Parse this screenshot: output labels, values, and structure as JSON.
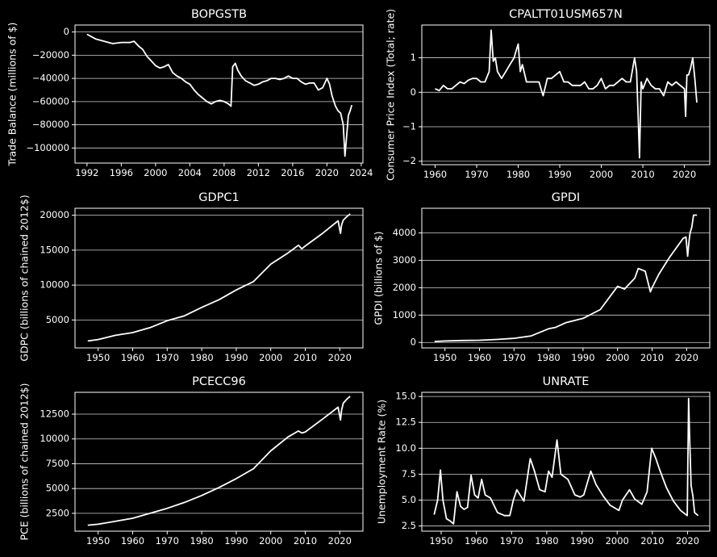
{
  "theme": {
    "background": "#000000",
    "foreground": "#ffffff",
    "grid": "#d0d0d0",
    "line": "#ffffff"
  },
  "chart_data": [
    {
      "type": "line",
      "title": "BOPGSTB",
      "xlabel": "",
      "ylabel": "Trade Balance (millions of $)",
      "x_is_date": true,
      "xlim": [
        1990.6,
        2024.2
      ],
      "ylim": [
        -113000,
        6000
      ],
      "xticks": [
        1992,
        1996,
        2000,
        2004,
        2008,
        2012,
        2016,
        2020,
        2024
      ],
      "yticks": [
        0,
        -20000,
        -40000,
        -60000,
        -80000,
        -100000
      ],
      "ytick_labels": [
        "0",
        "−20000",
        "−40000",
        "−60000",
        "−80000",
        "−100000"
      ],
      "grid": "y",
      "series": [
        {
          "x": [
            1992.0,
            1993.0,
            1994.0,
            1995.0,
            1996.0,
            1997.0,
            1997.5,
            1998.0,
            1998.5,
            1999.0,
            1999.5,
            2000.0,
            2000.5,
            2001.0,
            2001.5,
            2002.0,
            2002.5,
            2003.0,
            2003.5,
            2004.0,
            2004.5,
            2005.0,
            2005.5,
            2006.0,
            2006.5,
            2007.0,
            2007.5,
            2008.0,
            2008.5,
            2008.8,
            2009.0,
            2009.3,
            2009.6,
            2010.0,
            2010.5,
            2011.0,
            2011.5,
            2012.0,
            2012.5,
            2013.0,
            2013.5,
            2014.0,
            2014.5,
            2015.0,
            2015.5,
            2016.0,
            2016.5,
            2017.0,
            2017.5,
            2018.0,
            2018.5,
            2019.0,
            2019.5,
            2020.0,
            2020.3,
            2020.6,
            2021.0,
            2021.3,
            2021.6,
            2021.9,
            2022.1,
            2022.3,
            2022.5,
            2022.7,
            2022.9
          ],
          "y": [
            -2000,
            -6000,
            -8000,
            -10000,
            -9000,
            -9000,
            -8000,
            -12000,
            -15000,
            -21000,
            -25000,
            -29000,
            -31000,
            -30000,
            -28000,
            -35000,
            -38000,
            -40000,
            -43000,
            -45000,
            -50000,
            -54000,
            -57000,
            -60000,
            -62000,
            -60000,
            -59000,
            -60000,
            -62000,
            -64000,
            -30000,
            -27000,
            -33000,
            -38000,
            -42000,
            -44000,
            -46000,
            -45000,
            -43000,
            -42000,
            -40000,
            -40000,
            -41000,
            -40000,
            -38000,
            -40000,
            -40000,
            -43000,
            -45000,
            -44000,
            -44000,
            -50000,
            -48000,
            -40000,
            -45000,
            -55000,
            -64000,
            -68000,
            -70000,
            -80000,
            -107000,
            -90000,
            -72000,
            -68000,
            -63000
          ]
        }
      ]
    },
    {
      "type": "line",
      "title": "CPALTT01USM657N",
      "xlabel": "",
      "ylabel": "Consumer Price Index (Total; rate)",
      "x_is_date": true,
      "xlim": [
        1956.8,
        2026.1
      ],
      "ylim": [
        -2.1,
        1.95
      ],
      "xticks": [
        1960,
        1970,
        1980,
        1990,
        2000,
        2010,
        2020
      ],
      "yticks": [
        1,
        0,
        -1,
        -2
      ],
      "ytick_labels": [
        "1",
        "0",
        "−1",
        "−2"
      ],
      "grid": "y",
      "series": [
        {
          "x": [
            1960.0,
            1961.0,
            1962.0,
            1963.0,
            1964.0,
            1965.0,
            1966.0,
            1967.0,
            1968.0,
            1969.0,
            1970.0,
            1971.0,
            1972.0,
            1973.0,
            1973.5,
            1974.0,
            1974.5,
            1975.0,
            1976.0,
            1977.0,
            1978.0,
            1979.0,
            1979.5,
            1980.0,
            1980.5,
            1981.0,
            1982.0,
            1983.0,
            1984.0,
            1985.0,
            1986.0,
            1987.0,
            1988.0,
            1989.0,
            1990.0,
            1991.0,
            1992.0,
            1993.0,
            1994.0,
            1995.0,
            1996.0,
            1997.0,
            1998.0,
            1999.0,
            2000.0,
            2001.0,
            2002.0,
            2003.0,
            2004.0,
            2005.0,
            2006.0,
            2007.0,
            2008.0,
            2008.5,
            2008.9,
            2009.2,
            2009.6,
            2010.0,
            2011.0,
            2012.0,
            2013.0,
            2014.0,
            2015.0,
            2016.0,
            2017.0,
            2018.0,
            2019.0,
            2020.0,
            2020.3,
            2020.6,
            2021.0,
            2021.5,
            2022.0,
            2022.5,
            2023.0
          ],
          "y": [
            0.1,
            0.05,
            0.2,
            0.1,
            0.1,
            0.2,
            0.3,
            0.25,
            0.35,
            0.4,
            0.4,
            0.3,
            0.3,
            0.6,
            1.8,
            0.9,
            1.0,
            0.6,
            0.4,
            0.6,
            0.8,
            1.0,
            1.2,
            1.4,
            0.6,
            0.8,
            0.3,
            0.3,
            0.3,
            0.3,
            -0.1,
            0.4,
            0.4,
            0.5,
            0.6,
            0.3,
            0.3,
            0.2,
            0.2,
            0.2,
            0.3,
            0.1,
            0.1,
            0.2,
            0.4,
            0.1,
            0.2,
            0.2,
            0.3,
            0.4,
            0.3,
            0.3,
            1.0,
            0.6,
            -0.8,
            -1.9,
            0.3,
            0.1,
            0.4,
            0.2,
            0.1,
            0.1,
            -0.1,
            0.3,
            0.2,
            0.3,
            0.2,
            0.1,
            -0.7,
            0.5,
            0.5,
            0.7,
            1.0,
            0.4,
            -0.3
          ]
        }
      ]
    },
    {
      "type": "line",
      "title": "GDPC1",
      "xlabel": "",
      "ylabel": "GDPC (billions of chained 2012$)",
      "x_is_date": true,
      "xlim": [
        1943.3,
        2026.7
      ],
      "ylim": [
        1000,
        21000
      ],
      "xticks": [
        1950,
        1960,
        1970,
        1980,
        1990,
        2000,
        2010,
        2020
      ],
      "yticks": [
        5000,
        10000,
        15000,
        20000
      ],
      "ytick_labels": [
        "5000",
        "10000",
        "15000",
        "20000"
      ],
      "grid": "y",
      "series": [
        {
          "x": [
            1947,
            1950,
            1955,
            1960,
            1965,
            1970,
            1975,
            1980,
            1985,
            1990,
            1995,
            2000,
            2005,
            2008,
            2009,
            2010,
            2015,
            2019.5,
            2020.2,
            2020.5,
            2021,
            2022,
            2023
          ],
          "y": [
            2000,
            2200,
            2800,
            3200,
            3900,
            4900,
            5600,
            6800,
            7900,
            9300,
            10500,
            13000,
            14600,
            15700,
            15200,
            15600,
            17400,
            19200,
            17400,
            18600,
            19300,
            19800,
            20200
          ]
        }
      ]
    },
    {
      "type": "line",
      "title": "GPDI",
      "xlabel": "",
      "ylabel": "GPDI (billions of $)",
      "x_is_date": true,
      "xlim": [
        1943.3,
        2026.7
      ],
      "ylim": [
        -200,
        4900
      ],
      "xticks": [
        1950,
        1960,
        1970,
        1980,
        1990,
        2000,
        2010,
        2020
      ],
      "yticks": [
        0,
        1000,
        2000,
        3000,
        4000
      ],
      "ytick_labels": [
        "0",
        "1000",
        "2000",
        "3000",
        "4000"
      ],
      "grid": "y",
      "series": [
        {
          "x": [
            1947,
            1950,
            1955,
            1960,
            1965,
            1970,
            1975,
            1980,
            1982,
            1985,
            1990,
            1995,
            2000,
            2002,
            2005,
            2006,
            2008,
            2009.5,
            2010,
            2012,
            2015,
            2019,
            2019.8,
            2020.3,
            2020.7,
            2021,
            2021.5,
            2022,
            2023
          ],
          "y": [
            35,
            55,
            70,
            80,
            110,
            150,
            240,
            500,
            550,
            720,
            880,
            1200,
            2050,
            1950,
            2350,
            2700,
            2600,
            1850,
            2000,
            2500,
            3100,
            3800,
            3850,
            3150,
            3700,
            4000,
            4200,
            4650,
            4650
          ]
        }
      ]
    },
    {
      "type": "line",
      "title": "PCECC96",
      "xlabel": "",
      "ylabel": "PCE (billions of chained 2012$)",
      "x_is_date": true,
      "xlim": [
        1943.3,
        2026.7
      ],
      "ylim": [
        700,
        14700
      ],
      "xticks": [
        1950,
        1960,
        1970,
        1980,
        1990,
        2000,
        2010,
        2020
      ],
      "yticks": [
        2500,
        5000,
        7500,
        10000,
        12500
      ],
      "ytick_labels": [
        "2500",
        "5000",
        "7500",
        "10000",
        "12500"
      ],
      "grid": "y",
      "series": [
        {
          "x": [
            1947,
            1950,
            1955,
            1960,
            1965,
            1970,
            1975,
            1980,
            1985,
            1990,
            1995,
            2000,
            2005,
            2008,
            2009,
            2010,
            2015,
            2019.5,
            2020.2,
            2020.5,
            2021,
            2022,
            2023
          ],
          "y": [
            1300,
            1400,
            1700,
            2000,
            2500,
            3000,
            3600,
            4300,
            5100,
            6000,
            7000,
            8800,
            10200,
            10800,
            10600,
            10700,
            12000,
            13200,
            11900,
            12900,
            13600,
            14000,
            14300
          ]
        }
      ]
    },
    {
      "type": "line",
      "title": "UNRATE",
      "xlabel": "",
      "ylabel": "Unemployment Rate (%)",
      "x_is_date": true,
      "xlim": [
        1944.5,
        2026.3
      ],
      "ylim": [
        2.0,
        15.4
      ],
      "xticks": [
        1950,
        1960,
        1970,
        1980,
        1990,
        2000,
        2010,
        2020
      ],
      "yticks": [
        2.5,
        5.0,
        7.5,
        10.0,
        12.5,
        15.0
      ],
      "ytick_labels": [
        "2.5",
        "5.0",
        "7.5",
        "10.0",
        "12.5",
        "15.0"
      ],
      "grid": "y",
      "series": [
        {
          "x": [
            1948,
            1949,
            1949.8,
            1950.5,
            1951.5,
            1952.5,
            1953.5,
            1954.5,
            1955.5,
            1956.5,
            1957.5,
            1958.5,
            1959.5,
            1960.5,
            1961.5,
            1962.5,
            1964,
            1966,
            1968,
            1969.5,
            1970.5,
            1971.5,
            1973.5,
            1975.3,
            1976.5,
            1978,
            1979.5,
            1980.5,
            1981.5,
            1982.9,
            1984,
            1986,
            1988,
            1989.5,
            1990.5,
            1992.5,
            1994,
            1996,
            1998,
            2000.5,
            2001.5,
            2003.5,
            2005,
            2007,
            2008.5,
            2009.8,
            2011,
            2012,
            2014,
            2016,
            2018,
            2019.9,
            2020.3,
            2020.6,
            2021,
            2021.5,
            2022,
            2023
          ],
          "y": [
            3.6,
            5.0,
            7.9,
            5.0,
            3.2,
            3.0,
            2.7,
            5.8,
            4.4,
            4.1,
            4.3,
            7.4,
            5.5,
            5.2,
            7.0,
            5.5,
            5.2,
            3.8,
            3.5,
            3.5,
            5.0,
            6.0,
            4.9,
            9.0,
            7.8,
            6.0,
            5.8,
            7.8,
            7.2,
            10.8,
            7.5,
            7.0,
            5.5,
            5.3,
            5.5,
            7.8,
            6.5,
            5.4,
            4.5,
            4.0,
            5.0,
            6.0,
            5.1,
            4.6,
            5.8,
            10.0,
            9.0,
            8.0,
            6.2,
            4.9,
            4.0,
            3.5,
            14.8,
            11.0,
            6.4,
            5.4,
            3.8,
            3.5
          ]
        }
      ]
    }
  ]
}
